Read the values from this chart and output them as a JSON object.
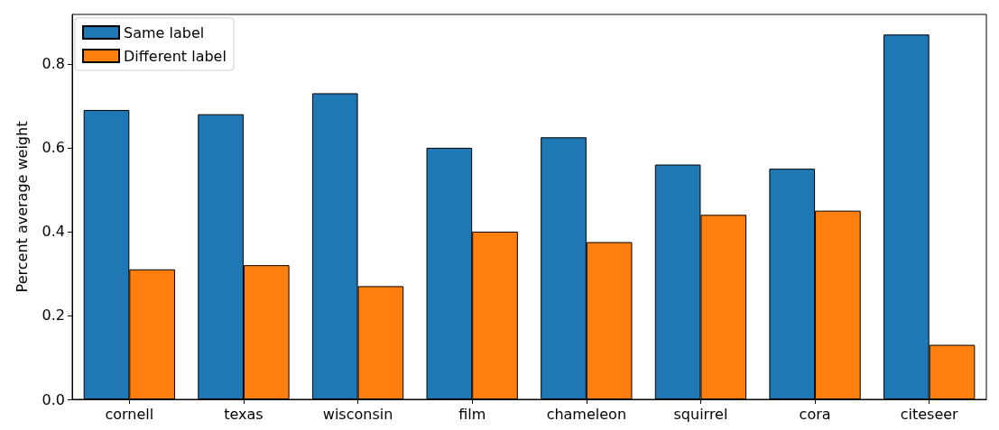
{
  "chart_data": {
    "type": "bar",
    "ylabel": "Percent average weight",
    "categories": [
      "cornell",
      "texas",
      "wisconsin",
      "film",
      "chameleon",
      "squirrel",
      "cora",
      "citeseer"
    ],
    "series": [
      {
        "name": "Same label",
        "color": "#1f77b4",
        "values": [
          0.69,
          0.68,
          0.73,
          0.6,
          0.625,
          0.56,
          0.55,
          0.87
        ]
      },
      {
        "name": "Different label",
        "color": "#ff7f0e",
        "values": [
          0.31,
          0.32,
          0.27,
          0.4,
          0.375,
          0.44,
          0.45,
          0.13
        ]
      }
    ],
    "ylim": [
      0,
      0.918
    ],
    "yticks": [
      {
        "value": 0,
        "label": "0.0"
      },
      0.2,
      0.4,
      0.6,
      0.8
    ],
    "grid": false,
    "legend": "top left"
  }
}
